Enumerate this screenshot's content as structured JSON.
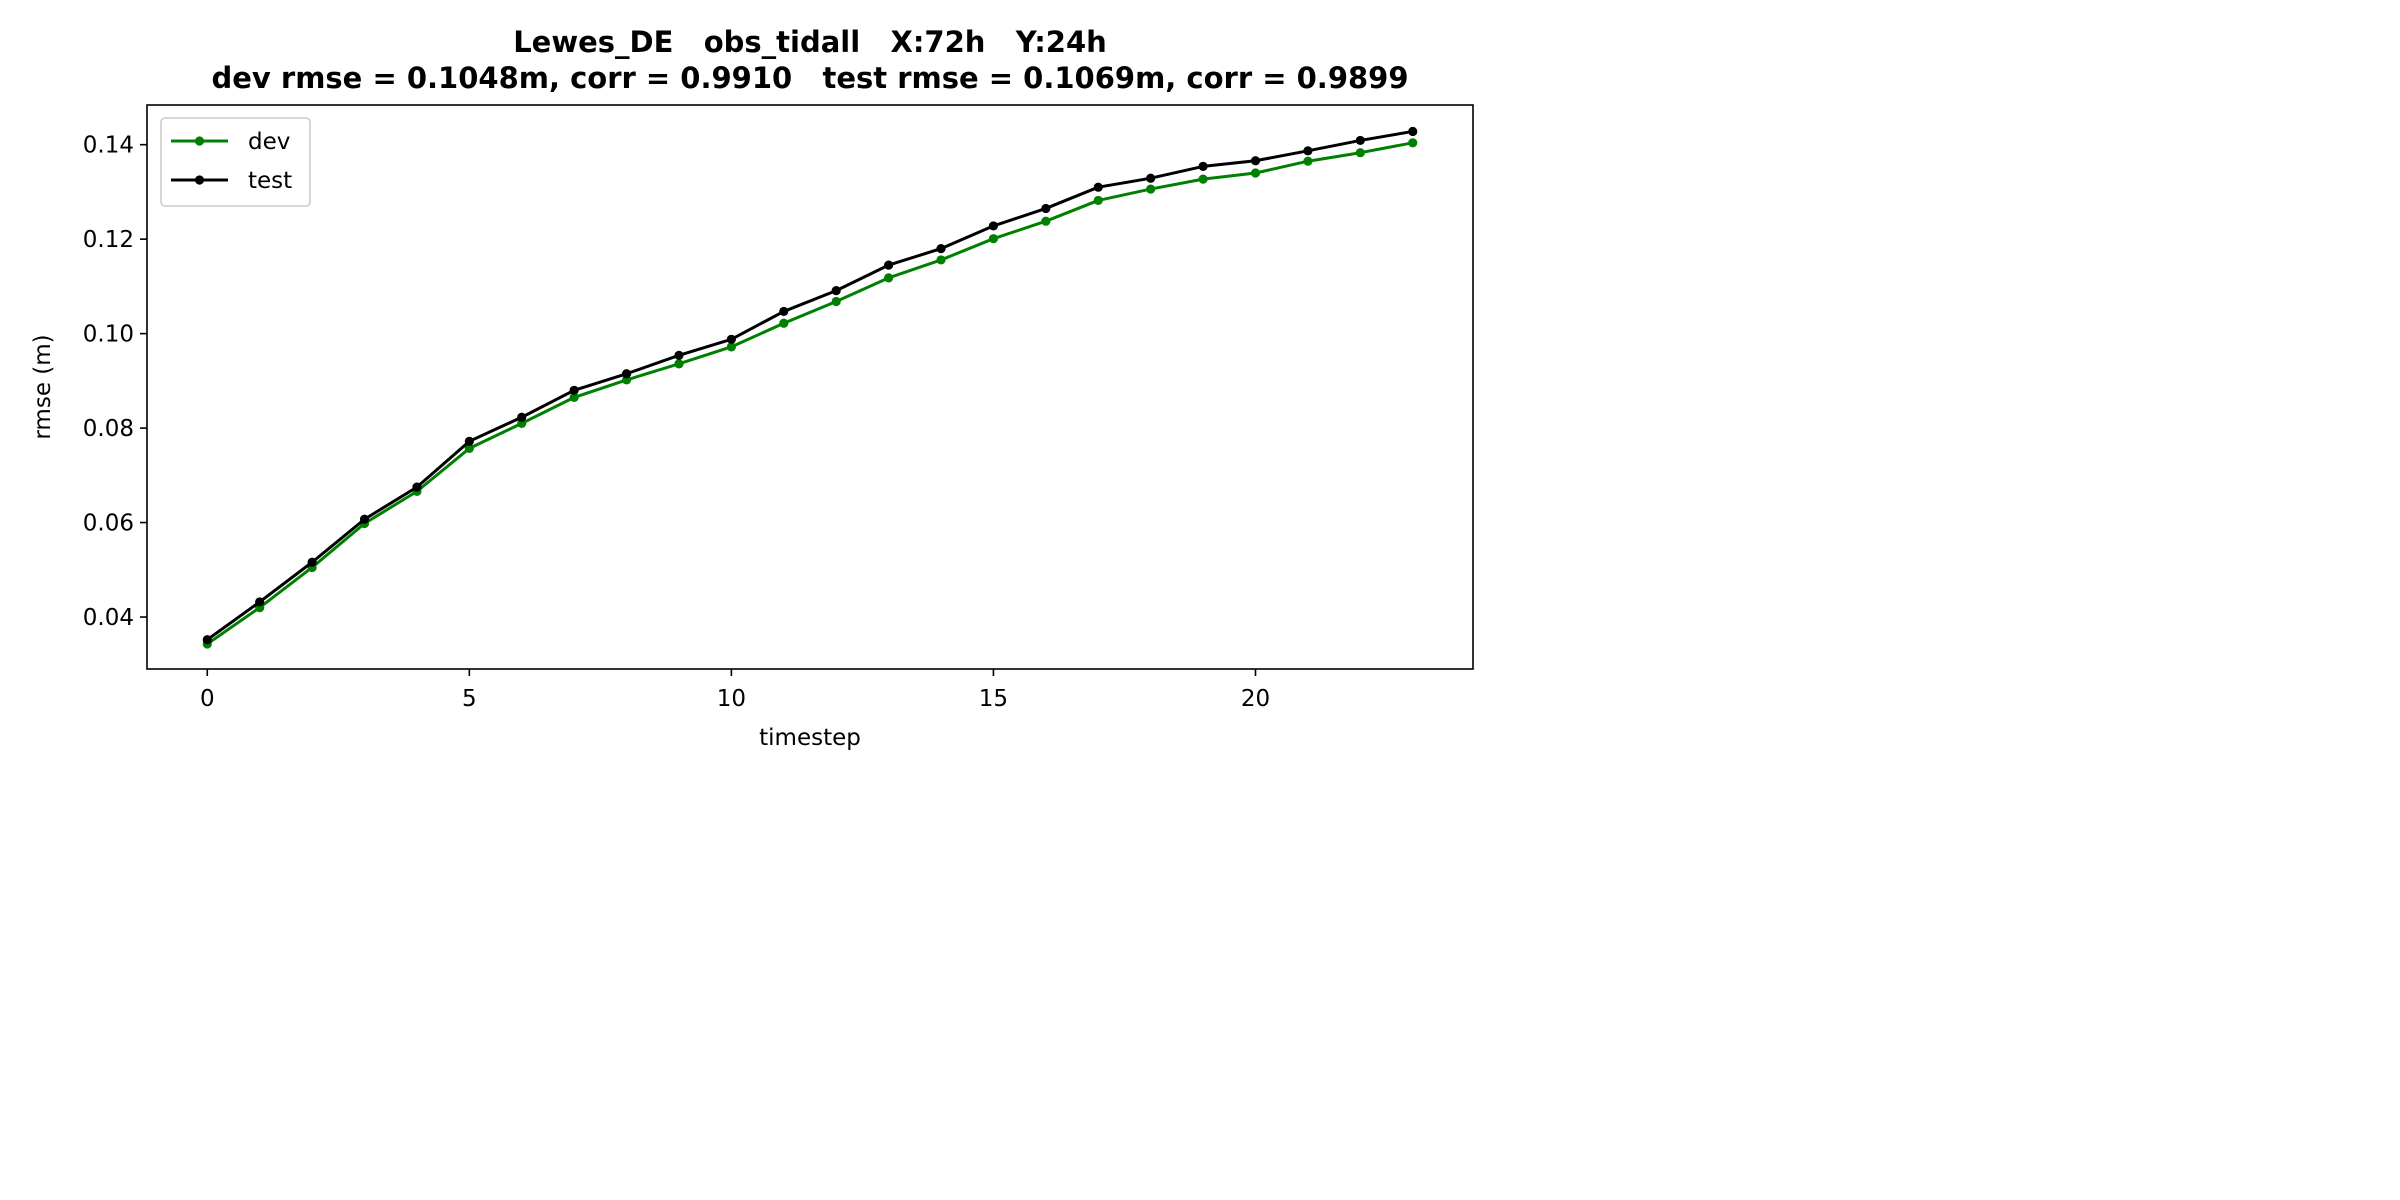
{
  "chart_data": {
    "type": "line",
    "title": "Lewes_DE   obs_tidall   X:72h   Y:24h",
    "subtitle": "dev rmse = 0.1048m, corr = 0.9910   test rmse = 0.1069m, corr = 0.9899",
    "xlabel": "timestep",
    "ylabel": "rmse (m)",
    "xlim": [
      -1.15,
      24.15
    ],
    "ylim": [
      0.029,
      0.1484
    ],
    "xticks": [
      0,
      5,
      10,
      15,
      20
    ],
    "xtick_labels": [
      "0",
      "5",
      "10",
      "15",
      "20"
    ],
    "yticks": [
      0.04,
      0.06,
      0.08,
      0.1,
      0.12,
      0.14
    ],
    "ytick_labels": [
      "0.04",
      "0.06",
      "0.08",
      "0.10",
      "0.12",
      "0.14"
    ],
    "grid": false,
    "legend": {
      "position": "upper-left"
    },
    "x": [
      0,
      1,
      2,
      3,
      4,
      5,
      6,
      7,
      8,
      9,
      10,
      11,
      12,
      13,
      14,
      15,
      16,
      17,
      18,
      19,
      20,
      21,
      22,
      23
    ],
    "series": [
      {
        "name": "dev",
        "color": "#008000",
        "values": [
          0.0343,
          0.042,
          0.0505,
          0.0598,
          0.0666,
          0.0757,
          0.081,
          0.0865,
          0.0902,
          0.0936,
          0.0972,
          0.1022,
          0.1068,
          0.1118,
          0.1156,
          0.1201,
          0.1238,
          0.1282,
          0.1306,
          0.1327,
          0.134,
          0.1365,
          0.1383,
          0.1404
        ]
      },
      {
        "name": "test",
        "color": "#000000",
        "values": [
          0.0352,
          0.0432,
          0.0516,
          0.0607,
          0.0675,
          0.0772,
          0.0823,
          0.088,
          0.0915,
          0.0954,
          0.0988,
          0.1047,
          0.1091,
          0.1145,
          0.118,
          0.1228,
          0.1265,
          0.131,
          0.1329,
          0.1354,
          0.1366,
          0.1387,
          0.1409,
          0.1428
        ]
      }
    ]
  }
}
